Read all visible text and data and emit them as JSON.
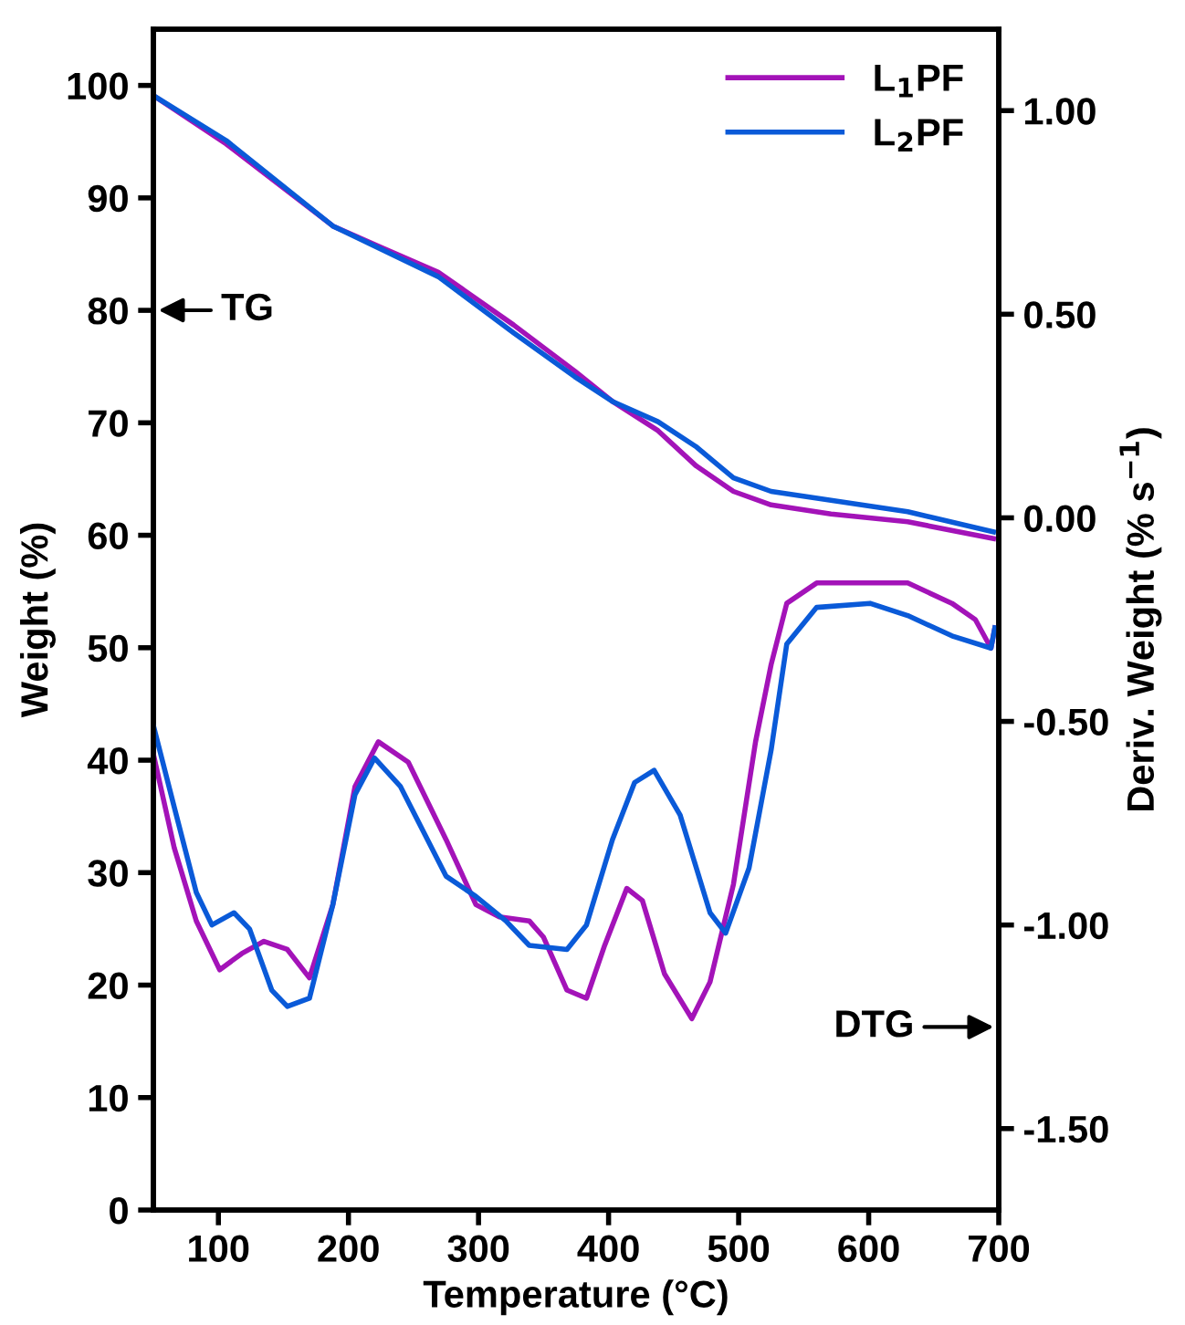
{
  "chart_data": {
    "type": "line",
    "xlabel": "Temperature (°C)",
    "ylabel": "Weight (%)",
    "y2label": "Deriv. Weight (% s$^{−1}$)",
    "xlim": [
      50,
      700
    ],
    "xticks": [
      100,
      200,
      300,
      400,
      500,
      600,
      700
    ],
    "ylim": [
      0,
      105
    ],
    "yticks": [
      0,
      10,
      20,
      30,
      40,
      50,
      60,
      70,
      80,
      90,
      100
    ],
    "y2lim": [
      -1.7,
      1.2
    ],
    "y2ticks": [
      {
        "value": -1.5,
        "label": "-1.50"
      },
      {
        "value": -1.0,
        "label": "-1.00"
      },
      {
        "value": -0.5,
        "label": "-0.50"
      },
      {
        "value": 0,
        "label": "0.00"
      },
      {
        "value": 0.5,
        "label": "0.50"
      },
      {
        "value": 1.0,
        "label": "1.00"
      }
    ],
    "legend": "top right",
    "grid": false,
    "marker": "none",
    "line_style": "solid",
    "annotations": [
      "TG",
      "DTG"
    ],
    "series": [
      {
        "name": "L$_{1}$PF",
        "color": "#a313b8",
        "x": [
          50,
          106,
          188,
          223,
          269,
          327,
          374,
          403,
          438,
          467,
          496,
          525,
          571,
          630,
          696
        ],
        "values": [
          99.1,
          94.8,
          87.5,
          85.7,
          83.4,
          78.7,
          74.6,
          71.9,
          69.3,
          66.2,
          63.9,
          62.7,
          61.9,
          61.2,
          59.7
        ]
      },
      {
        "name": "L$_{2}$PF",
        "color": "#0a5ad8",
        "x": [
          50,
          106,
          188,
          269,
          327,
          374,
          403,
          438,
          467,
          496,
          525,
          571,
          630,
          696
        ],
        "values": [
          99.1,
          95.1,
          87.5,
          83.0,
          78.0,
          74.1,
          71.9,
          70.1,
          67.9,
          65.1,
          63.9,
          63.1,
          62.1,
          60.3
        ]
      },
      {
        "color": "#a313b8",
        "axis": "y2",
        "x": [
          50,
          66,
          83,
          101,
          118,
          135,
          153,
          170,
          188,
          205,
          223,
          246,
          275,
          298,
          316,
          339,
          350,
          368,
          383,
          397,
          414,
          426,
          443,
          464,
          478,
          496,
          513,
          525,
          537,
          560,
          601,
          630,
          664,
          682,
          694,
          697
        ],
        "values": [
          -0.58,
          -0.81,
          -0.99,
          -1.11,
          -1.07,
          -1.04,
          -1.06,
          -1.13,
          -0.95,
          -0.66,
          -0.55,
          -0.6,
          -0.79,
          -0.95,
          -0.98,
          -0.99,
          -1.03,
          -1.16,
          -1.18,
          -1.05,
          -0.91,
          -0.94,
          -1.12,
          -1.23,
          -1.14,
          -0.9,
          -0.55,
          -0.36,
          -0.21,
          -0.16,
          -0.16,
          -0.16,
          -0.21,
          -0.25,
          -0.32,
          -0.27
        ]
      },
      {
        "color": "#0a5ad8",
        "axis": "y2",
        "x": [
          50,
          66,
          83,
          95,
          112,
          124,
          141,
          153,
          170,
          188,
          205,
          220,
          240,
          275,
          298,
          321,
          339,
          368,
          383,
          403,
          420,
          435,
          455,
          478,
          490,
          508,
          525,
          537,
          560,
          601,
          630,
          664,
          694,
          697
        ],
        "values": [
          -0.51,
          -0.71,
          -0.92,
          -1.0,
          -0.97,
          -1.01,
          -1.16,
          -1.2,
          -1.18,
          -0.95,
          -0.68,
          -0.59,
          -0.66,
          -0.88,
          -0.93,
          -0.99,
          -1.05,
          -1.06,
          -1.0,
          -0.79,
          -0.65,
          -0.62,
          -0.73,
          -0.97,
          -1.02,
          -0.86,
          -0.57,
          -0.31,
          -0.22,
          -0.21,
          -0.24,
          -0.29,
          -0.32,
          -0.27
        ]
      }
    ]
  }
}
